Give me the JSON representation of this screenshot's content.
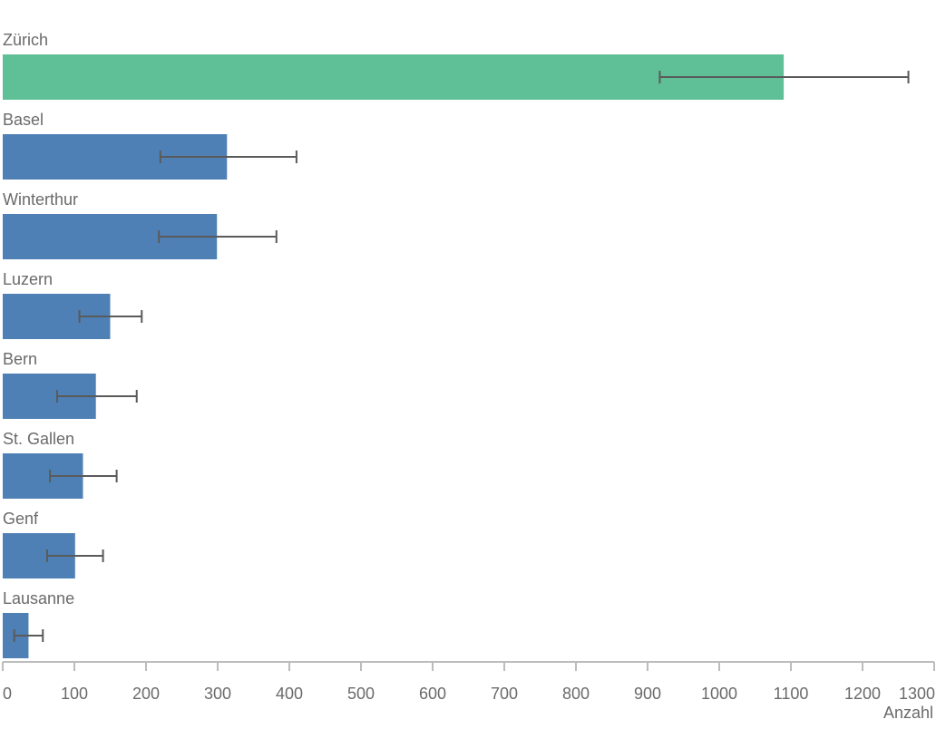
{
  "chart_data": {
    "type": "bar",
    "orientation": "horizontal",
    "categories": [
      "Zürich",
      "Basel",
      "Winterthur",
      "Luzern",
      "Bern",
      "St. Gallen",
      "Genf",
      "Lausanne"
    ],
    "values": [
      1090,
      313,
      299,
      150,
      130,
      112,
      101,
      36
    ],
    "error_low": [
      917,
      220,
      218,
      107,
      76,
      66,
      62,
      16
    ],
    "error_high": [
      1264,
      410,
      382,
      194,
      187,
      159,
      140,
      56
    ],
    "highlight_index": 0,
    "xlabel": "Anzahl",
    "xlim": [
      0,
      1300
    ],
    "xticks": [
      0,
      100,
      200,
      300,
      400,
      500,
      600,
      700,
      800,
      900,
      1000,
      1100,
      1200,
      1300
    ],
    "grid": false,
    "colors": {
      "bar": "#4e80b5",
      "highlight": "#5fc097",
      "error_bar": "#5a5a5a",
      "axis": "#bcbcbc",
      "text": "#6a6a6a"
    }
  }
}
